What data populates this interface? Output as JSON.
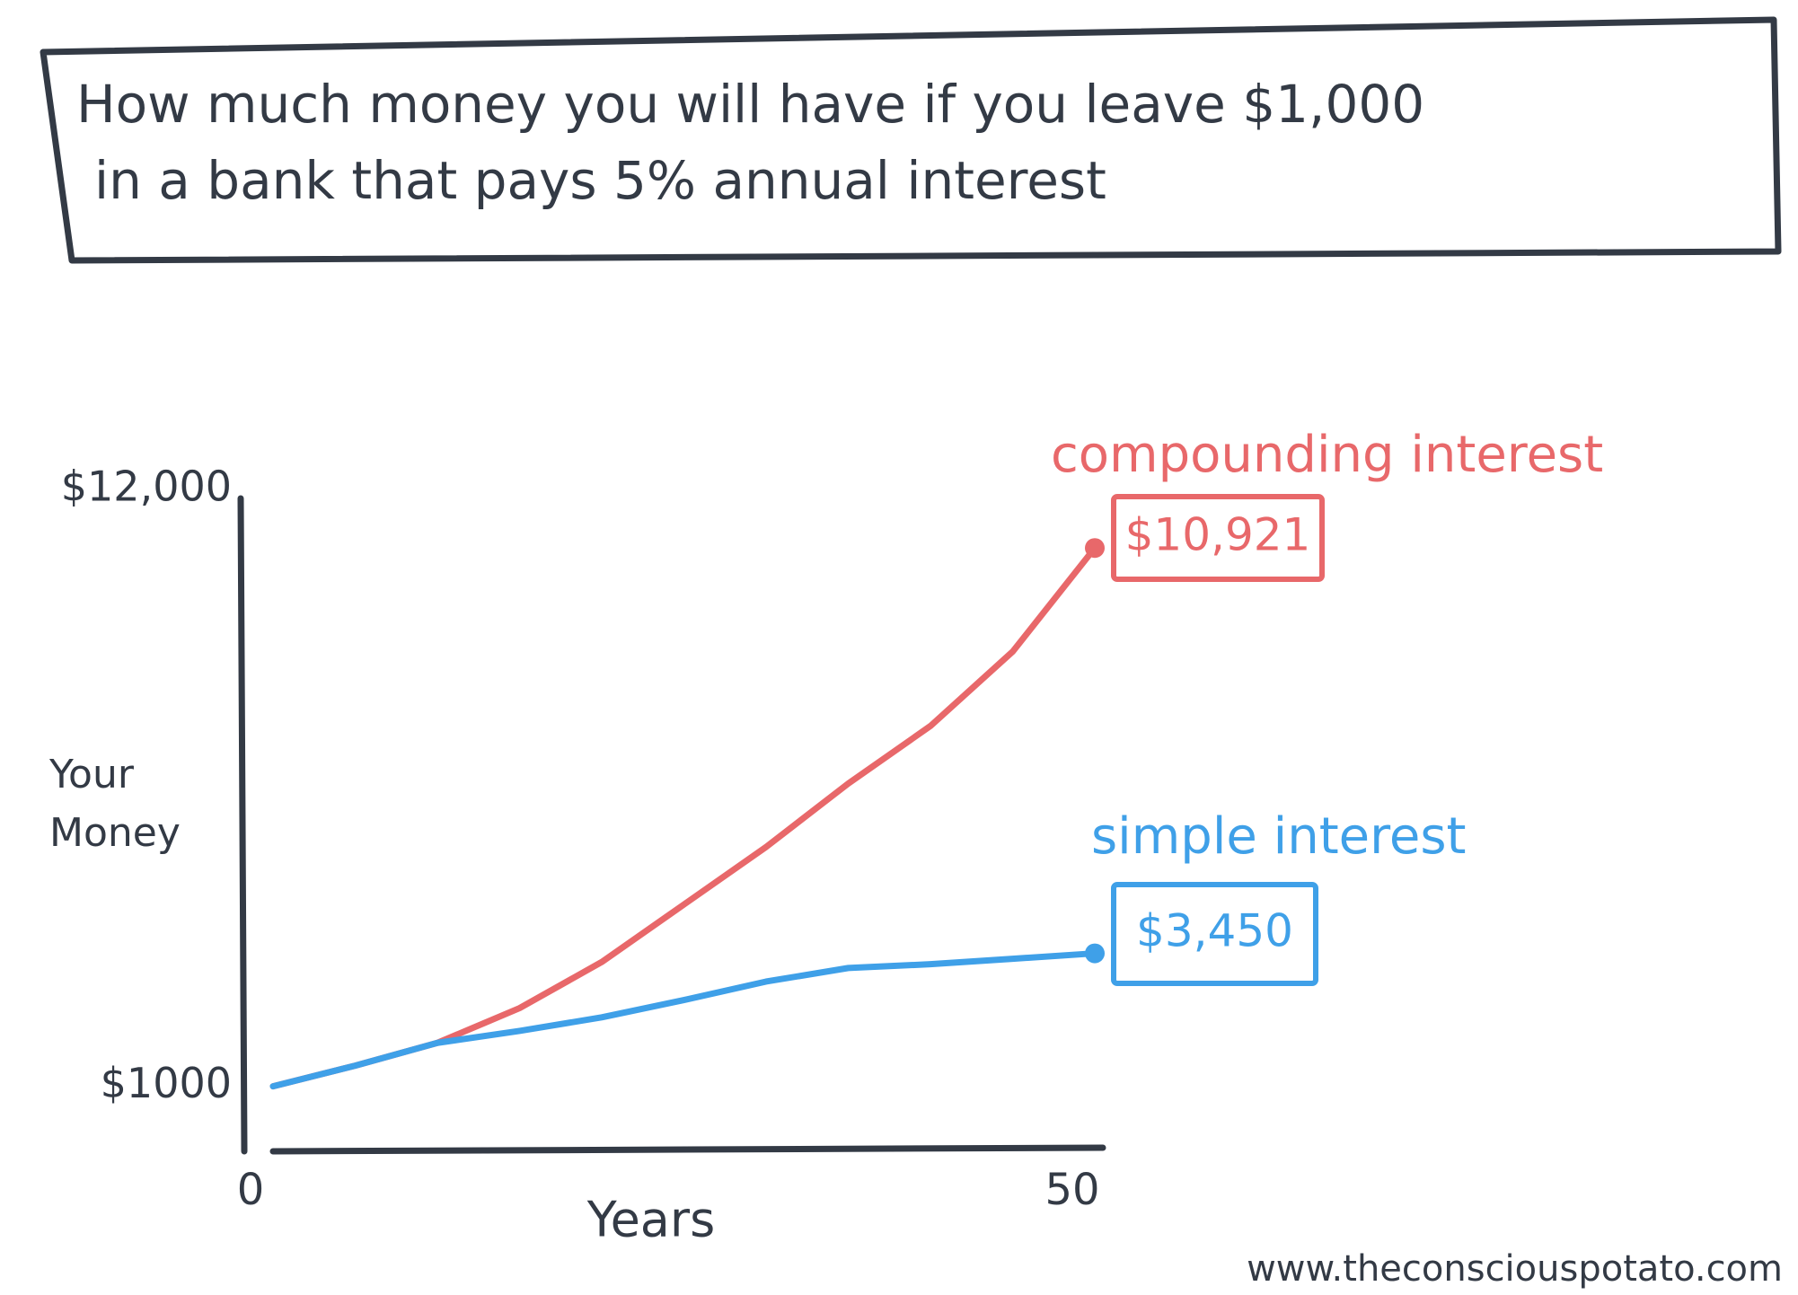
{
  "chart_data": {
    "type": "line",
    "title_lines": [
      "How much money you will have if you leave $1,000",
      "in a bank that pays 5% annual interest"
    ],
    "ylabel_lines": [
      "Your",
      "Money"
    ],
    "xlabel": "Years",
    "source": "www.theconsciouspotato.com",
    "x": [
      0,
      5,
      10,
      15,
      20,
      25,
      30,
      35,
      40,
      45,
      50
    ],
    "xlim": [
      0,
      50
    ],
    "xticks": [
      0,
      50
    ],
    "ylim": [
      0,
      12000
    ],
    "yticks": [
      {
        "value": 1000,
        "label": "$1000"
      },
      {
        "value": 12000,
        "label": "$12,000"
      }
    ],
    "grid": false,
    "series": [
      {
        "name": "compounding interest",
        "color": "#e8686a",
        "values": [
          1000,
          1380,
          1800,
          2440,
          3290,
          4350,
          5410,
          6580,
          7640,
          9010,
          10921
        ],
        "value_labels": [
          null,
          null,
          null,
          null,
          null,
          null,
          null,
          null,
          null,
          null,
          "$10,921"
        ]
      },
      {
        "name": "simple interest",
        "color": "#3fa0e8",
        "values": [
          1000,
          1380,
          1800,
          2020,
          2270,
          2590,
          2930,
          3180,
          3250,
          3350,
          3450
        ],
        "value_labels": [
          null,
          null,
          null,
          null,
          null,
          null,
          null,
          null,
          null,
          null,
          "$3,450"
        ]
      }
    ]
  }
}
